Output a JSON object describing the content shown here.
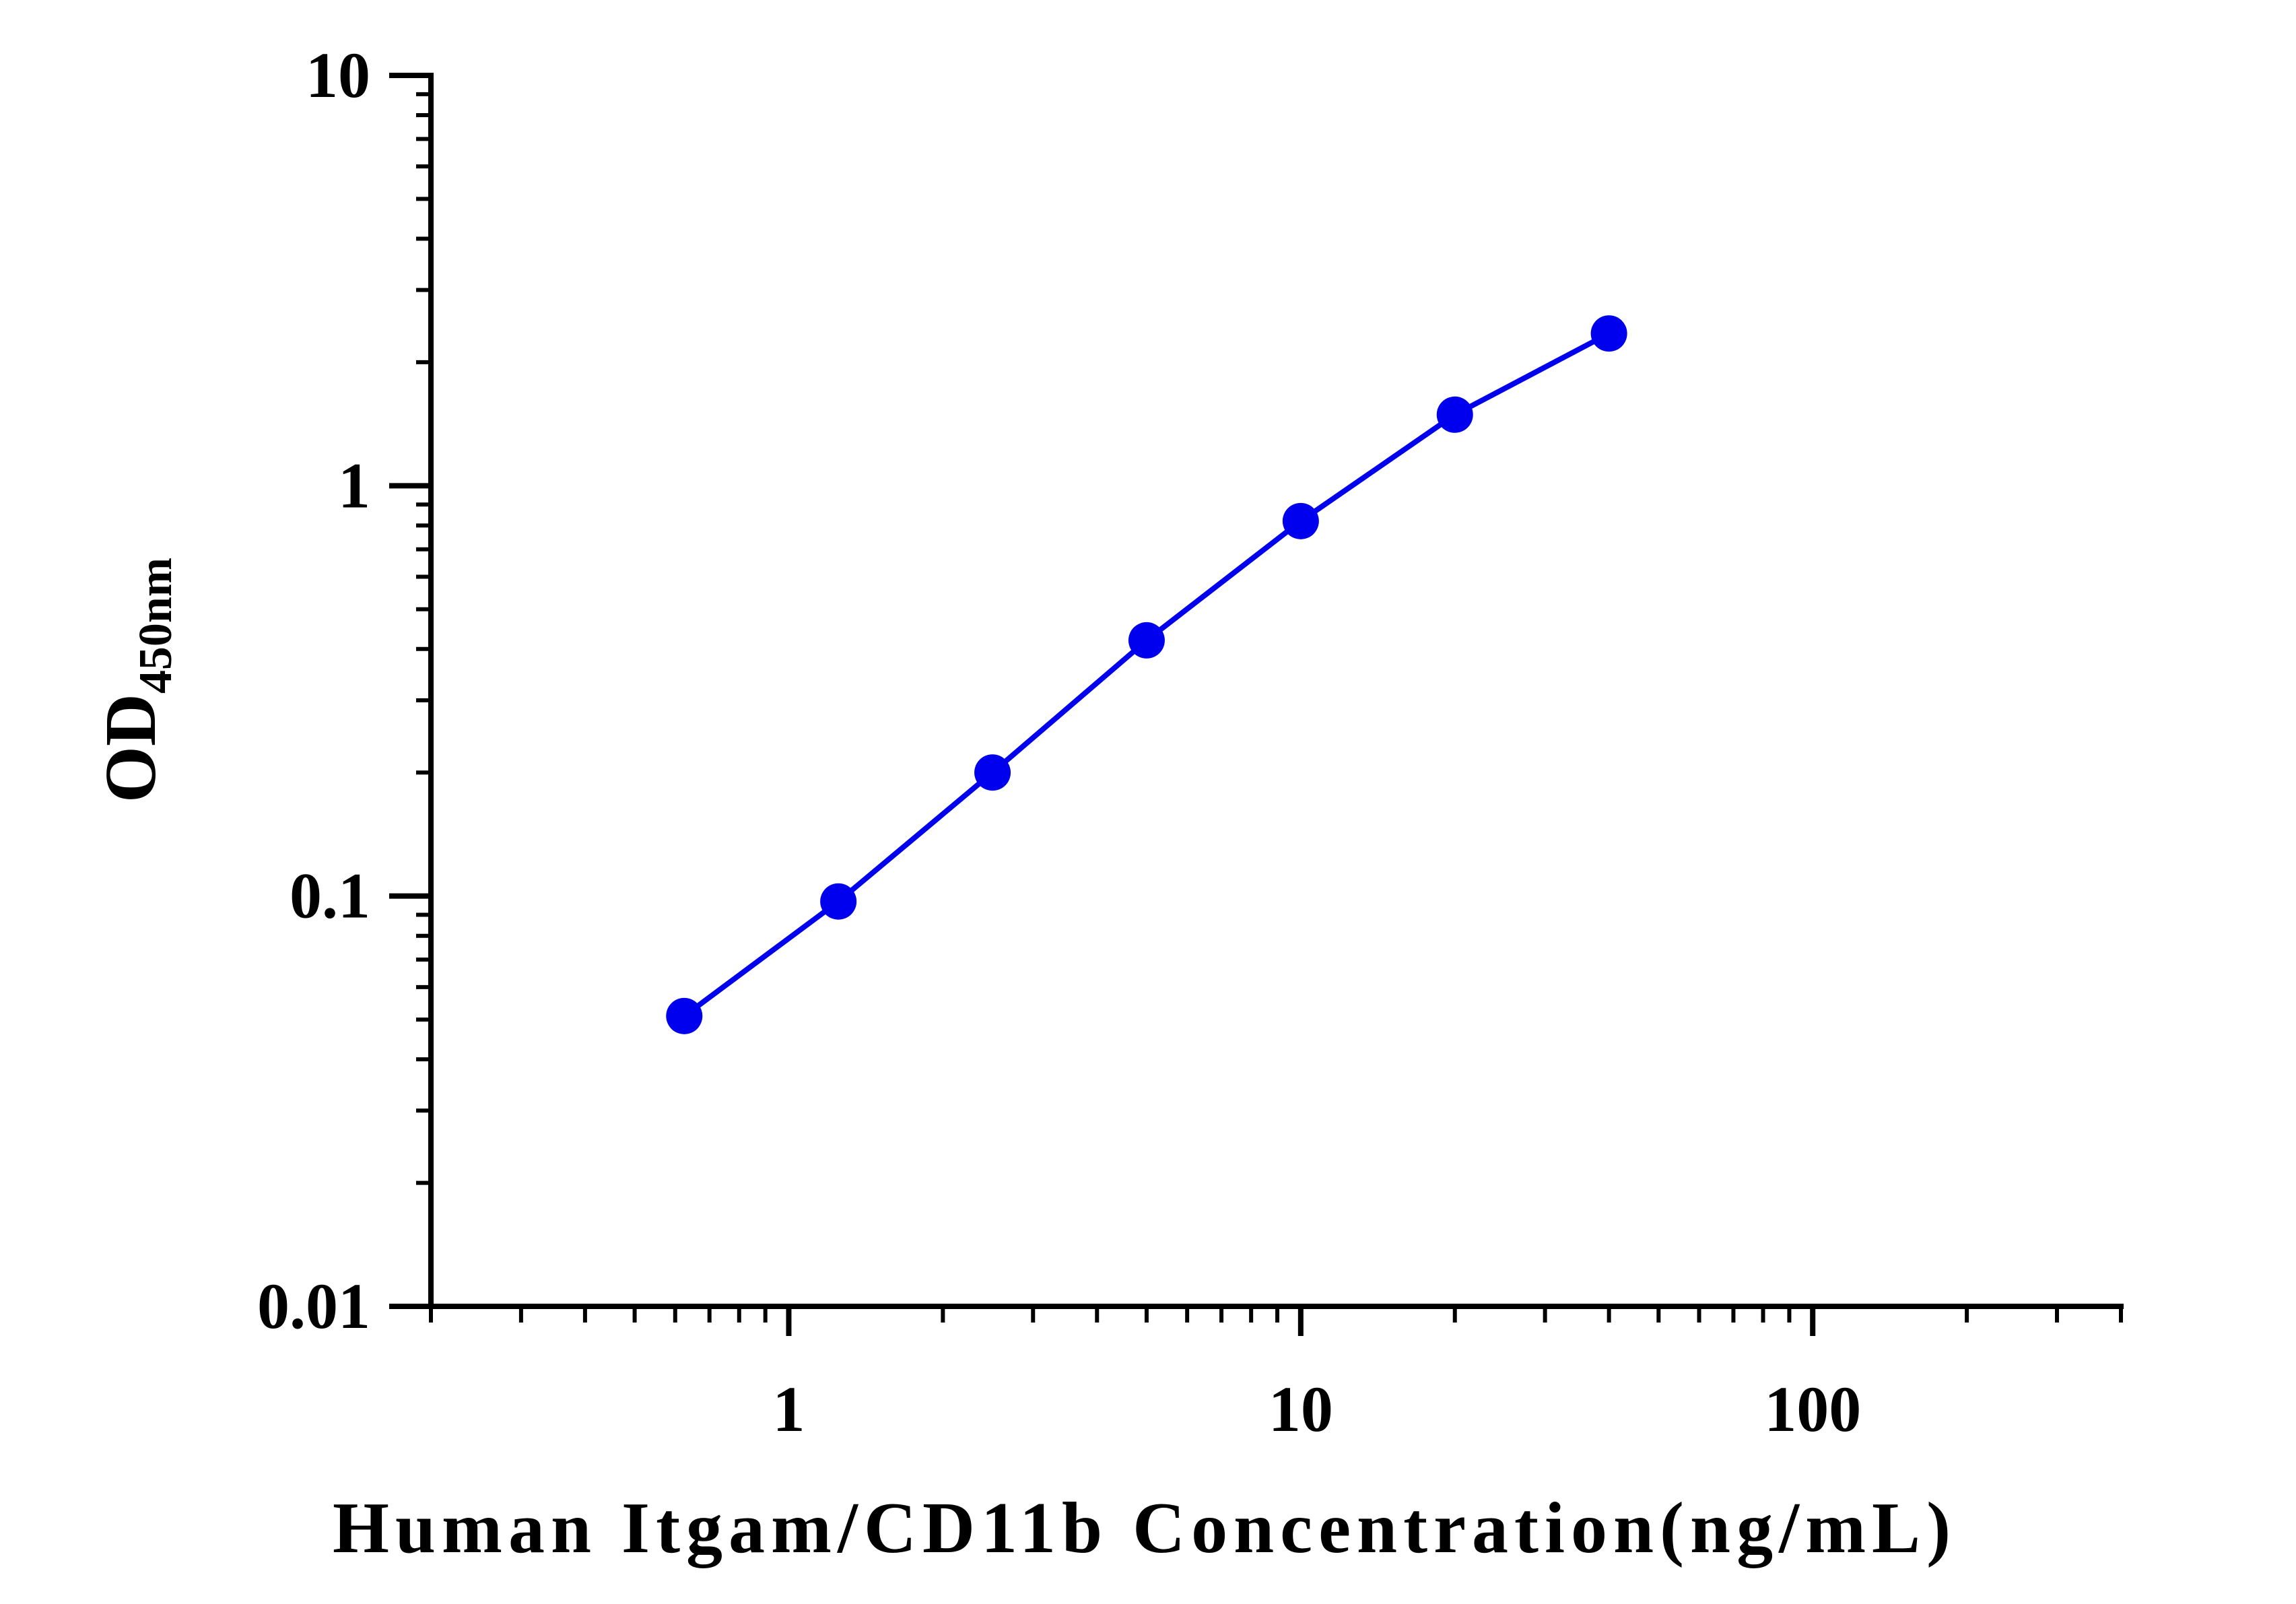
{
  "chart_data": {
    "type": "line",
    "title": "",
    "xlabel": "Human Itgam/CD11b Concentration(ng/mL)",
    "ylabel": "OD",
    "ylabel_subscript": "450nm",
    "x_scale": "log",
    "y_scale": "log",
    "xlim": [
      0.2,
      400
    ],
    "ylim": [
      0.01,
      10
    ],
    "x_ticks": [
      {
        "value": 1,
        "label": "1"
      },
      {
        "value": 10,
        "label": "10"
      },
      {
        "value": 100,
        "label": "100"
      }
    ],
    "y_ticks": [
      {
        "value": 0.01,
        "label": "0.01"
      },
      {
        "value": 0.1,
        "label": "0.1"
      },
      {
        "value": 1,
        "label": "1"
      },
      {
        "value": 10,
        "label": "10"
      }
    ],
    "grid": false,
    "series": [
      {
        "color": "#0000ee",
        "x": [
          0.625,
          1.25,
          2.5,
          5,
          10,
          20,
          40
        ],
        "y": [
          0.051,
          0.097,
          0.2,
          0.42,
          0.82,
          1.49,
          2.35
        ]
      }
    ]
  }
}
